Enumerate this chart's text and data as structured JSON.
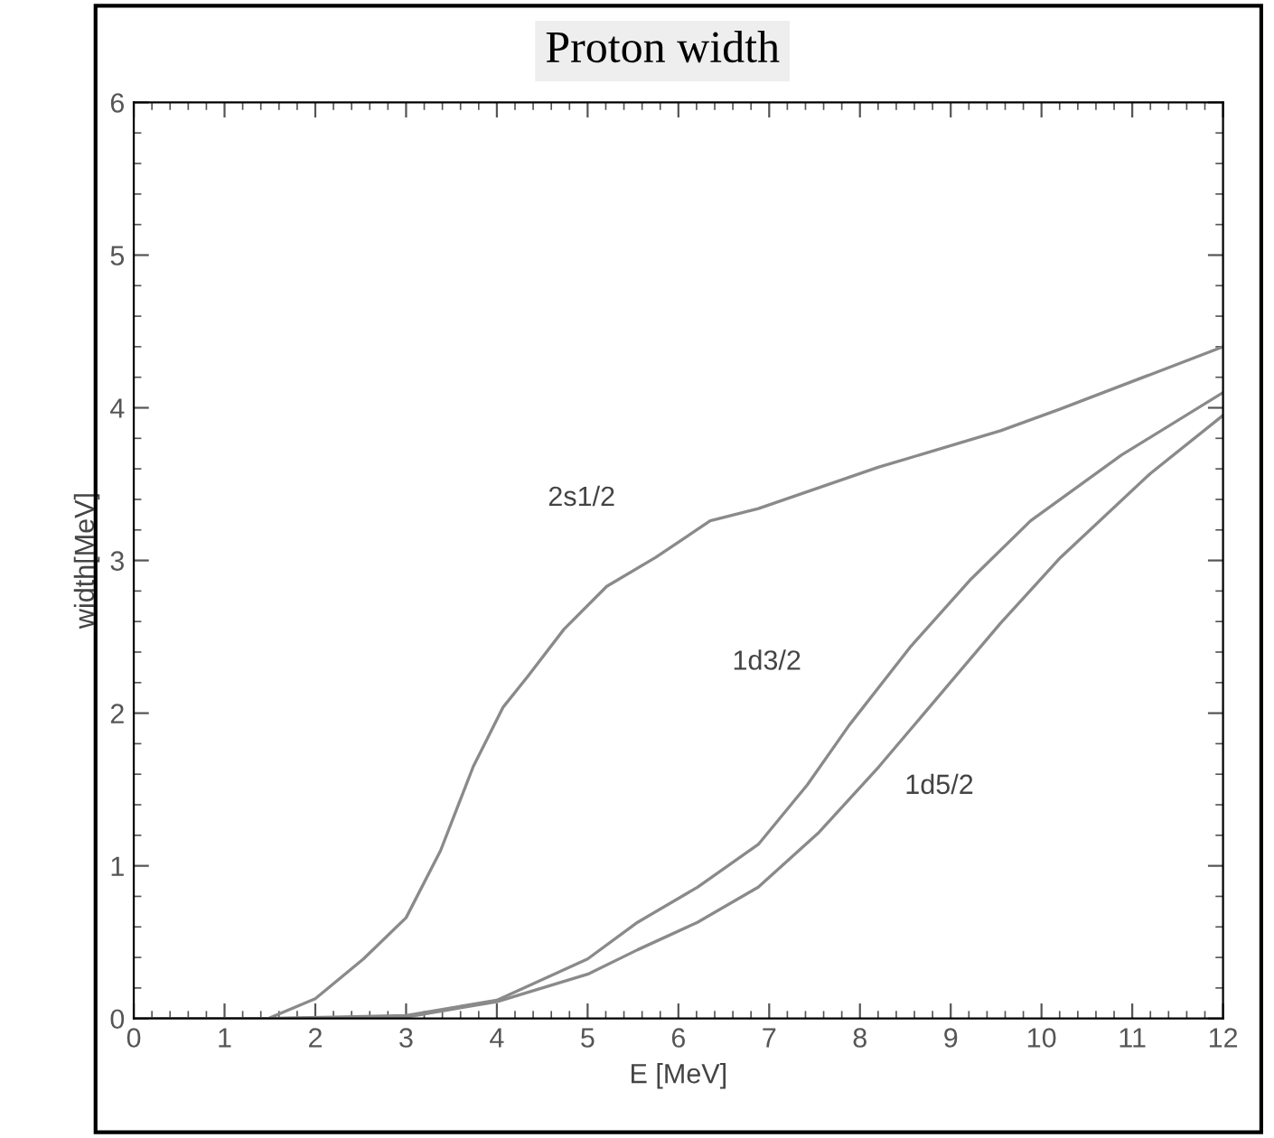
{
  "chart_data": {
    "type": "line",
    "title": "Proton width",
    "xlabel": "E [MeV]",
    "ylabel": "width[MeV]",
    "xlim": [
      0,
      12
    ],
    "ylim": [
      0,
      6
    ],
    "xticks": [
      0,
      1,
      2,
      3,
      4,
      5,
      6,
      7,
      8,
      9,
      10,
      11,
      12
    ],
    "yticks": [
      0,
      1,
      2,
      3,
      4,
      5,
      6
    ],
    "grid": false,
    "line_style": "solid",
    "marker": "none",
    "series": [
      {
        "name": "2s1/2",
        "color": "#8a8a8a",
        "x": [
          0,
          1.0,
          1.48,
          2.0,
          2.53,
          3.0,
          3.38,
          3.74,
          4.07,
          4.34,
          4.74,
          5.21,
          5.75,
          6.35,
          6.88,
          8.2,
          9.55,
          10.2,
          12
        ],
        "values": [
          0,
          0,
          0,
          0.13,
          0.39,
          0.66,
          1.1,
          1.65,
          2.04,
          2.24,
          2.55,
          2.83,
          3.02,
          3.26,
          3.34,
          3.61,
          3.85,
          3.99,
          4.4
        ]
      },
      {
        "name": "1d3/2",
        "color": "#8a8a8a",
        "x": [
          0,
          1.5,
          3.0,
          4.0,
          5.0,
          5.55,
          6.21,
          6.88,
          7.42,
          7.88,
          8.55,
          9.21,
          9.88,
          10.88,
          12
        ],
        "values": [
          0,
          0,
          0.02,
          0.12,
          0.39,
          0.63,
          0.86,
          1.14,
          1.53,
          1.92,
          2.43,
          2.87,
          3.26,
          3.69,
          4.1
        ]
      },
      {
        "name": "1d5/2",
        "color": "#8a8a8a",
        "x": [
          0,
          1.5,
          3.0,
          4.0,
          5.0,
          5.55,
          6.21,
          6.88,
          7.55,
          8.21,
          8.88,
          9.55,
          10.21,
          11.2,
          12
        ],
        "values": [
          0,
          0,
          0.01,
          0.11,
          0.29,
          0.45,
          0.63,
          0.86,
          1.22,
          1.65,
          2.12,
          2.59,
          3.02,
          3.57,
          3.95
        ]
      }
    ]
  }
}
